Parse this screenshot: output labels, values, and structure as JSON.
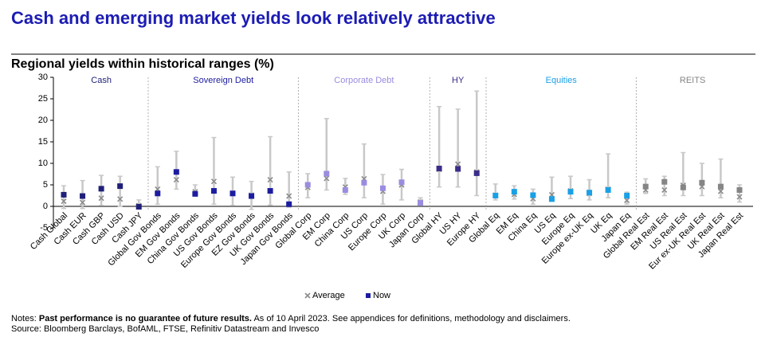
{
  "chart_data": {
    "type": "range",
    "title": "Cash and emerging market yields look relatively attractive",
    "subtitle": "Regional yields within historical ranges (%)",
    "groups": [
      {
        "name": "Cash",
        "color": "#1f1f7a",
        "categories": [
          "Cash Global",
          "Cash EUR",
          "Cash GBP",
          "Cash USD",
          "Cash JPY"
        ]
      },
      {
        "name": "Sovereign Debt",
        "color": "#1c1ca0",
        "categories": [
          "Global Gov Bonds",
          "EM Gov Bonds",
          "China Gov Bonds",
          "US Gov Bonds",
          "Europe Gov Bonds",
          "EZ Gov Bonds",
          "UK Gov Bonds",
          "Japan Gov Bonds"
        ]
      },
      {
        "name": "Corporate Debt",
        "color": "#9a8ce0",
        "categories": [
          "Global Corp",
          "EM Corp",
          "China Corp",
          "US Corp",
          "Europe Corp",
          "UK Corp",
          "Japan Corp"
        ]
      },
      {
        "name": "HY",
        "color": "#3a2e8a",
        "categories": [
          "Global HY",
          "US HY",
          "Europe HY"
        ]
      },
      {
        "name": "Equities",
        "color": "#1aa0e6",
        "categories": [
          "Global Eq",
          "EM Eq",
          "China Eq",
          "US Eq",
          "Europe Eq",
          "Europe ex-UK Eq",
          "UK Eq",
          "Japan Eq"
        ]
      },
      {
        "name": "REITS",
        "color": "#858585",
        "categories": [
          "Global Real Est",
          "EM Real Est",
          "US Real Est",
          "Eur ex-UK Real Est",
          "UK Real Est",
          "Japan Real Est"
        ]
      }
    ],
    "range_low": [
      -0.5,
      -0.5,
      0.2,
      0,
      -0.5,
      0.5,
      4,
      2.5,
      0.5,
      0.2,
      -0.7,
      0.3,
      -0.2,
      2,
      3.8,
      2.8,
      2,
      0.5,
      1.5,
      0.2,
      4.5,
      4.5,
      2.5,
      1.5,
      1.7,
      0.5,
      1.2,
      1.8,
      1.5,
      2,
      0.5,
      3,
      2.5,
      2.5,
      2.5,
      2,
      1
    ],
    "range_high": [
      4.8,
      6,
      7.2,
      7,
      1.5,
      9.2,
      12.8,
      5,
      16,
      6.8,
      5.8,
      16.2,
      8,
      7.6,
      20.4,
      6.5,
      14.5,
      7.4,
      8.6,
      2,
      23.2,
      22.6,
      26.8,
      5.2,
      4.8,
      4,
      6.8,
      7,
      6.2,
      12.2,
      3.3,
      6.4,
      7,
      12.5,
      10,
      11,
      5
    ],
    "series": [
      {
        "name": "Average",
        "color": "#8c8c8c",
        "values": [
          1.2,
          0.9,
          1.9,
          1.7,
          0.2,
          4,
          6.2,
          3.4,
          5.8,
          3.1,
          2.6,
          6.2,
          2.4,
          4.4,
          6.5,
          4.5,
          6.4,
          3.5,
          5,
          1,
          8.6,
          9.8,
          8,
          2.6,
          2.8,
          1.8,
          2.7,
          3.6,
          3,
          4,
          1.4,
          3.8,
          3.8,
          4.9,
          4.6,
          3.5,
          2.2
        ]
      },
      {
        "name": "Now",
        "color": "#1c1ca0",
        "values": [
          2.7,
          2.4,
          4.1,
          4.7,
          -0.1,
          3,
          8,
          2.9,
          3.6,
          3,
          2.4,
          3.6,
          0.5,
          5,
          7.6,
          3.8,
          5.5,
          4.2,
          5.6,
          0.8,
          8.8,
          8.7,
          7.7,
          2.5,
          3.4,
          2.6,
          1.7,
          3.4,
          3.2,
          3.8,
          2.5,
          4.6,
          5.7,
          4.4,
          5.5,
          4.6,
          3.8
        ]
      }
    ],
    "ylim": [
      -5,
      30
    ],
    "yticks": [
      -5,
      0,
      5,
      10,
      15,
      20,
      25,
      30
    ],
    "notes": {
      "label": "Notes:",
      "bold": "Past performance is no guarantee of future results.",
      "rest": "As of 10 April 2023. See appendices for definitions, methodology and disclaimers."
    },
    "source": "Source: Bloomberg Barclays, BofAML, FTSE, Refinitiv Datastream and Invesco"
  }
}
